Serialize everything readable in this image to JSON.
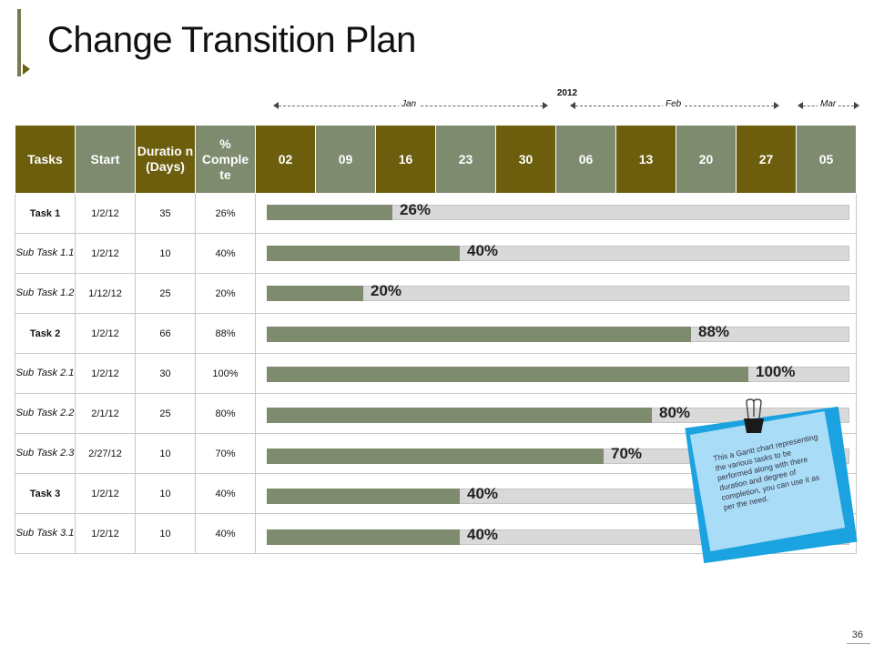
{
  "slide": {
    "title": "Change Transition Plan",
    "page_number": "36"
  },
  "timeline": {
    "year": "2012",
    "months": [
      "Jan",
      "Feb",
      "Mar"
    ]
  },
  "headers": {
    "tasks": "Tasks",
    "start": "Start",
    "duration": "Duratio n (Days)",
    "complete": "% Comple te",
    "weeks": [
      "02",
      "09",
      "16",
      "23",
      "30",
      "06",
      "13",
      "20",
      "27",
      "05"
    ]
  },
  "note": {
    "text": "This a Gantt chart representing the various tasks to be performed along with there duration and degree of completion, you can use it as per the need."
  },
  "chart_data": {
    "type": "bar",
    "title": "Change Transition Plan",
    "categories": [
      "Task 1",
      "Sub Task 1.1",
      "Sub Task 1.2",
      "Task 2",
      "Sub Task 2.1",
      "Sub Task 2.2",
      "Sub Task 2.3",
      "Task 3",
      "Sub Task 3.1"
    ],
    "start": [
      "1/2/12",
      "1/2/12",
      "1/12/12",
      "1/2/12",
      "1/2/12",
      "2/1/12",
      "2/27/12",
      "1/2/12",
      "1/2/12"
    ],
    "duration_days": [
      "35",
      "10",
      "25",
      "66",
      "30",
      "25",
      "10",
      "10",
      "10"
    ],
    "complete_labels": [
      "26%",
      "40%",
      "20%",
      "88%",
      "100%",
      "80%",
      "70%",
      "40%",
      "40%"
    ],
    "values": [
      26,
      40,
      20,
      88,
      100,
      80,
      70,
      40,
      40
    ],
    "ylim": [
      0,
      100
    ],
    "grid": false,
    "legend": "none"
  }
}
